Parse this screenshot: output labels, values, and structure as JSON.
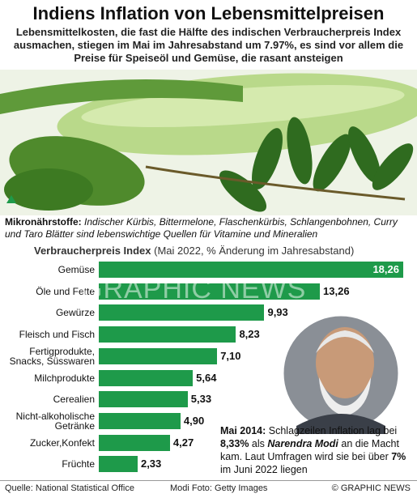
{
  "title": "Indiens Inflation von Lebensmittelpreisen",
  "subtitle": "Lebensmittelkosten, die fast die Hälfte des indischen Verbraucherpreis Index ausmachen, stiegen im Mai im Jahresabstand um 7.97%, es sind vor allem die Preise für Speiseöl und Gemüse, die rasant ansteigen",
  "caption": {
    "label": "Mikronährstoffe:",
    "text": "Indischer Kürbis, Bittermelone, Flaschenkürbis, Schlangenbohnen, Curry und Taro Blätter sind lebenswichtige Quellen für Vitamine und Mineralien"
  },
  "watermark": "GRAPHIC NEWS",
  "chart_data": {
    "type": "bar",
    "orientation": "horizontal",
    "title": "Verbraucherpreis Index",
    "subtitle": "(Mai 2022, % Änderung im Jahresabstand)",
    "categories": [
      "Gemüse",
      "Öle und Fette",
      "Gewürze",
      "Fleisch und Fisch",
      "Fertigprodukte,\nSnacks, Süsswaren",
      "Milchprodukte",
      "Cerealien",
      "Nicht-alkoholische\nGetränke",
      "Zucker,Konfekt",
      "Früchte"
    ],
    "values": [
      18.26,
      13.26,
      9.93,
      8.23,
      7.1,
      5.64,
      5.33,
      4.9,
      4.27,
      2.33
    ],
    "value_labels": [
      "18,26",
      "13,26",
      "9,93",
      "8,23",
      "7,10",
      "5,64",
      "5,33",
      "4,90",
      "4,27",
      "2,33"
    ],
    "color": "#1e9a4a"
  },
  "annotation": {
    "parts": [
      "Mai 2014:",
      " Schlagzeilen Inflation lag bei ",
      "8,33%",
      " als ",
      "Narendra Modi",
      " an die Macht kam. Laut Umfragen wird sie bei über ",
      "7%",
      " im Juni 2022 liegen"
    ]
  },
  "footer": {
    "source": "Quelle: National Statistical Office",
    "photo": "Modi Foto: Getty Images",
    "credit": "© GRAPHIC NEWS"
  }
}
